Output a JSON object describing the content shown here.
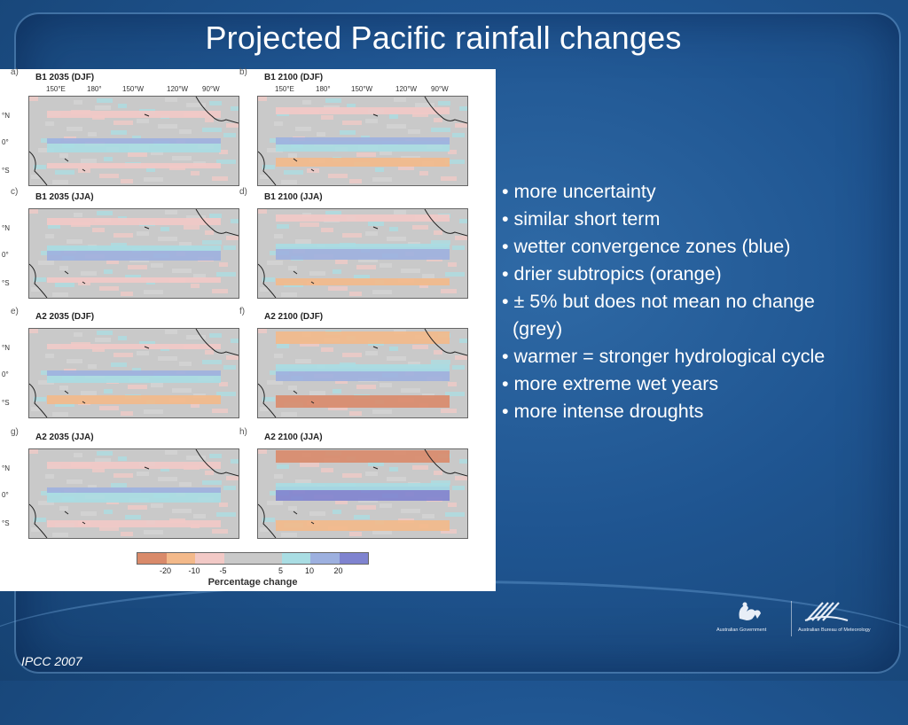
{
  "slide": {
    "title": "Projected Pacific rainfall changes",
    "footer": "IPCC 2007"
  },
  "figure": {
    "panels": [
      {
        "letter": "a)",
        "label": "B1 2035 (DJF)",
        "lons": [
          "150°E",
          "180°",
          "150°W",
          "120°W",
          "90°W"
        ]
      },
      {
        "letter": "b)",
        "label": "B1 2100 (DJF)",
        "lons": [
          "150°E",
          "180°",
          "150°W",
          "120°W",
          "90°W"
        ]
      },
      {
        "letter": "c)",
        "label": "B1 2035 (JJA)"
      },
      {
        "letter": "d)",
        "label": "B1 2100 (JJA)"
      },
      {
        "letter": "e)",
        "label": "A2 2035 (DJF)"
      },
      {
        "letter": "f)",
        "label": "A2 2100 (DJF)"
      },
      {
        "letter": "g)",
        "label": "A2 2035 (JJA)"
      },
      {
        "letter": "h)",
        "label": "A2 2100 (JJA)"
      }
    ],
    "lat_labels": [
      "°N",
      "0°",
      "°S"
    ],
    "legend": {
      "title": "Percentage change",
      "ticks": [
        "-20",
        "-10",
        "-5",
        "5",
        "10",
        "20"
      ],
      "colors": [
        "#d98a6a",
        "#f3b98a",
        "#f2c9c6",
        "#c9c9c9",
        "#c9c9c9",
        "#a9dde3",
        "#9db0df",
        "#7f83cf"
      ]
    }
  },
  "bullets": [
    "• more uncertainty",
    "• similar short term",
    "• wetter convergence zones (blue)",
    "• drier subtropics (orange)",
    "• ± 5% but does not mean no change",
    "(grey)",
    "• warmer = stronger hydrological cycle",
    "• more extreme wet years",
    "• more intense droughts"
  ],
  "logos": {
    "left_text": "Australian Government",
    "right_text": "Australian Bureau of Meteorology"
  }
}
